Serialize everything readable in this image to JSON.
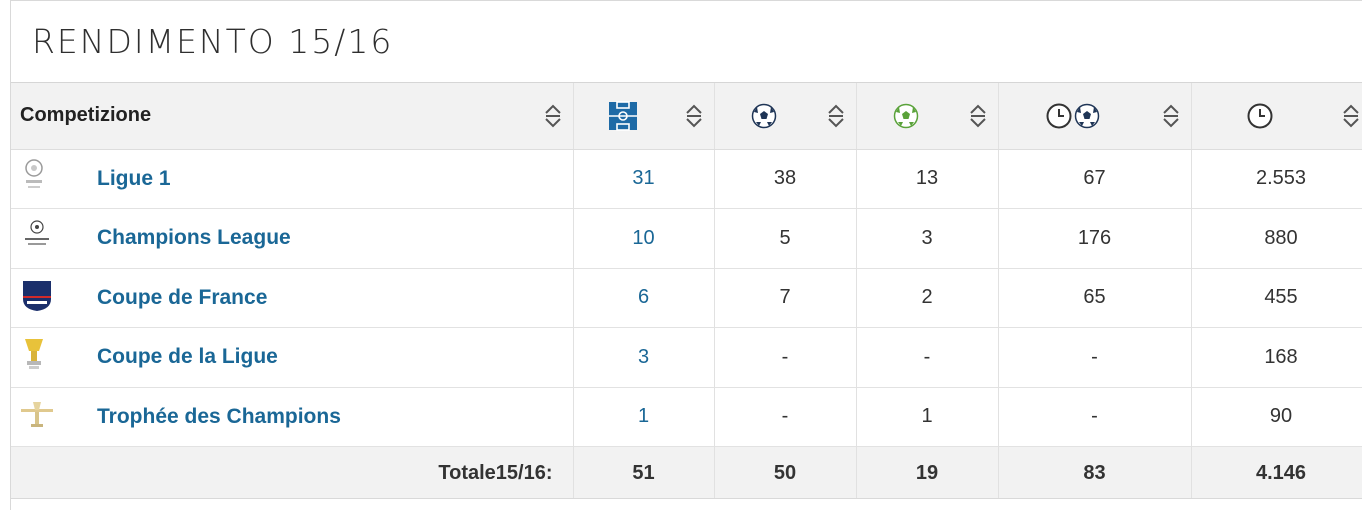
{
  "title": "RENDIMENTO 15/16",
  "header": {
    "competition_label": "Competizione",
    "columns": [
      {
        "icon": "pitch-icon"
      },
      {
        "icon": "goal-ball-icon"
      },
      {
        "icon": "assist-ball-icon"
      },
      {
        "icon": "minutes-per-goal-icon"
      },
      {
        "icon": "clock-icon"
      }
    ]
  },
  "rows": [
    {
      "logo": "ligue1-logo-icon",
      "name": "Ligue 1",
      "apps": "31",
      "goals": "38",
      "assists": "13",
      "min_per_goal": "67",
      "minutes": "2.553"
    },
    {
      "logo": "champions-league-logo-icon",
      "name": "Champions League",
      "apps": "10",
      "goals": "5",
      "assists": "3",
      "min_per_goal": "176",
      "minutes": "880"
    },
    {
      "logo": "coupe-de-france-logo-icon",
      "name": "Coupe de France",
      "apps": "6",
      "goals": "7",
      "assists": "2",
      "min_per_goal": "65",
      "minutes": "455"
    },
    {
      "logo": "coupe-de-la-ligue-logo-icon",
      "name": "Coupe de la Ligue",
      "apps": "3",
      "goals": "-",
      "assists": "-",
      "min_per_goal": "-",
      "minutes": "168"
    },
    {
      "logo": "trophee-des-champions-logo-icon",
      "name": "Trophée des Champions",
      "apps": "1",
      "goals": "-",
      "assists": "1",
      "min_per_goal": "-",
      "minutes": "90"
    }
  ],
  "total": {
    "label": "Totale15/16:",
    "apps": "51",
    "goals": "50",
    "assists": "19",
    "min_per_goal": "83",
    "minutes": "4.146"
  },
  "colors": {
    "link": "#1a6796",
    "header_bg": "#f2f2f2",
    "pitch_icon": "#1e6aa6"
  }
}
